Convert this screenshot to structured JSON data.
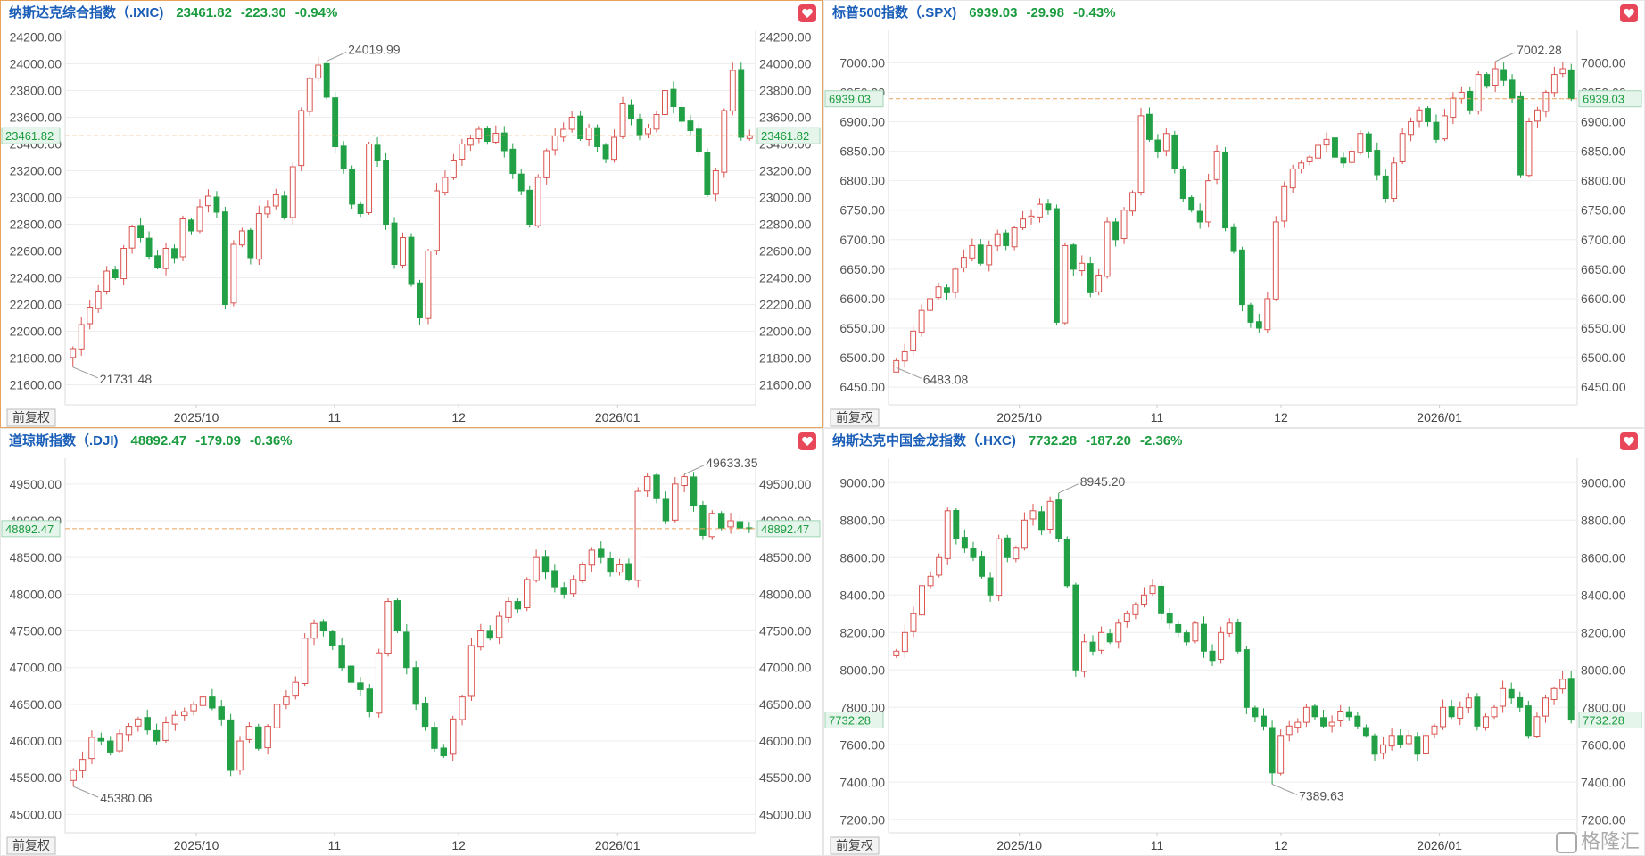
{
  "colors": {
    "up": "#d9534f",
    "down": "#22a046",
    "change": "#1a9c3e",
    "title": "#1a5eb8",
    "heart": "#e8475a",
    "active_border": "#e8a25c"
  },
  "fq_label": "前复权",
  "watermark": "格隆汇",
  "panels": [
    {
      "key": "ixic",
      "title": "纳斯达克综合指数（.IXIC)",
      "price": "23461.82",
      "change": "-223.30",
      "pct": "-0.94%",
      "current_label": "23461.82",
      "max_label": "24019.99",
      "min_label": "21731.48",
      "x_labels": [
        "2025/10",
        "11",
        "12",
        "2026/01"
      ],
      "chart_data": {
        "type": "candlestick",
        "y_ticks": [
          "24200.00",
          "24000.00",
          "23800.00",
          "23600.00",
          "23400.00",
          "23200.00",
          "23000.00",
          "22800.00",
          "22600.00",
          "22400.00",
          "22200.00",
          "22000.00",
          "21800.00",
          "21600.00"
        ],
        "ylim": [
          21450,
          24250
        ],
        "current": 23461.82,
        "max": 24019.99,
        "min": 21731.48,
        "closes": [
          21870,
          22050,
          22180,
          22300,
          22450,
          22400,
          22620,
          22780,
          22700,
          22560,
          22480,
          22620,
          22550,
          22840,
          22750,
          22930,
          23010,
          22890,
          22200,
          22650,
          22750,
          22550,
          22880,
          22930,
          23020,
          22850,
          23230,
          23650,
          23890,
          23990,
          23750,
          23380,
          23220,
          22950,
          22880,
          23400,
          23280,
          22800,
          22500,
          22700,
          22350,
          22100,
          22600,
          23050,
          23150,
          23280,
          23400,
          23440,
          23510,
          23420,
          23480,
          23350,
          23180,
          23050,
          22800,
          23150,
          23350,
          23460,
          23510,
          23600,
          23440,
          23520,
          23380,
          23290,
          23450,
          23700,
          23590,
          23470,
          23520,
          23620,
          23800,
          23680,
          23570,
          23500,
          23340,
          23020,
          23200,
          23650,
          23950,
          23450,
          23462
        ]
      }
    },
    {
      "key": "spx",
      "title": "标普500指数（.SPX)",
      "price": "6939.03",
      "change": "-29.98",
      "pct": "-0.43%",
      "current_label": "6939.03",
      "max_label": "7002.28",
      "min_label": "6483.08",
      "x_labels": [
        "2025/10",
        "11",
        "12",
        "2026/01"
      ],
      "chart_data": {
        "type": "candlestick",
        "y_ticks": [
          "7000.00",
          "6950.00",
          "6900.00",
          "6850.00",
          "6800.00",
          "6750.00",
          "6700.00",
          "6650.00",
          "6600.00",
          "6550.00",
          "6500.00",
          "6450.00"
        ],
        "ylim": [
          6420,
          7055
        ],
        "current": 6939.03,
        "max": 7002.28,
        "min": 6483.08,
        "closes": [
          6495,
          6510,
          6545,
          6580,
          6600,
          6620,
          6610,
          6650,
          6670,
          6690,
          6660,
          6690,
          6710,
          6690,
          6720,
          6735,
          6740,
          6760,
          6750,
          6560,
          6690,
          6650,
          6660,
          6610,
          6640,
          6730,
          6700,
          6750,
          6780,
          6910,
          6870,
          6850,
          6880,
          6820,
          6770,
          6750,
          6730,
          6800,
          6850,
          6720,
          6680,
          6590,
          6560,
          6550,
          6600,
          6730,
          6790,
          6820,
          6830,
          6840,
          6860,
          6870,
          6840,
          6830,
          6850,
          6880,
          6850,
          6810,
          6770,
          6830,
          6880,
          6900,
          6920,
          6900,
          6870,
          6910,
          6940,
          6950,
          6920,
          6980,
          6960,
          6990,
          6970,
          6940,
          6810,
          6900,
          6920,
          6950,
          6980,
          6990,
          6939
        ]
      }
    },
    {
      "key": "dji",
      "title": "道琼斯指数（.DJI)",
      "price": "48892.47",
      "change": "-179.09",
      "pct": "-0.36%",
      "current_label": "48892.47",
      "max_label": "49633.35",
      "min_label": "45380.06",
      "x_labels": [
        "2025/10",
        "11",
        "12",
        "2026/01"
      ],
      "chart_data": {
        "type": "candlestick",
        "y_ticks": [
          "49500.00",
          "49000.00",
          "48500.00",
          "48000.00",
          "47500.00",
          "47000.00",
          "46500.00",
          "46000.00",
          "45500.00",
          "45000.00"
        ],
        "ylim": [
          44750,
          49850
        ],
        "current": 48892.47,
        "max": 49633.35,
        "min": 45380.06,
        "closes": [
          45600,
          45750,
          46050,
          46000,
          45850,
          46100,
          46200,
          46300,
          46150,
          46000,
          46250,
          46350,
          46400,
          46500,
          46600,
          46450,
          46300,
          45600,
          46000,
          46200,
          45900,
          46200,
          46500,
          46600,
          46800,
          47400,
          47600,
          47500,
          47300,
          47000,
          46800,
          46700,
          46400,
          47200,
          47900,
          47500,
          47000,
          46500,
          46200,
          45900,
          45800,
          46300,
          46600,
          47300,
          47500,
          47400,
          47700,
          47900,
          47800,
          48200,
          48500,
          48300,
          48100,
          48000,
          48200,
          48400,
          48600,
          48500,
          48300,
          48400,
          48200,
          49400,
          49600,
          49300,
          49000,
          49500,
          49600,
          49200,
          48800,
          49100,
          48900,
          49000,
          48900,
          48892
        ]
      }
    },
    {
      "key": "hxc",
      "title": "纳斯达克中国金龙指数（.HXC)",
      "price": "7732.28",
      "change": "-187.20",
      "pct": "-2.36%",
      "current_label": "7732.28",
      "max_label": "8945.20",
      "min_label": "7389.63",
      "x_labels": [
        "2025/10",
        "11",
        "12",
        "2026/01"
      ],
      "chart_data": {
        "type": "candlestick",
        "y_ticks": [
          "9000.00",
          "8800.00",
          "8600.00",
          "8400.00",
          "8200.00",
          "8000.00",
          "7800.00",
          "7600.00",
          "7400.00",
          "7200.00"
        ],
        "ylim": [
          7130,
          9130
        ],
        "current": 7732.28,
        "max": 8945.2,
        "min": 7389.63,
        "closes": [
          8100,
          8200,
          8300,
          8450,
          8500,
          8600,
          8850,
          8700,
          8650,
          8600,
          8500,
          8400,
          8700,
          8600,
          8650,
          8800,
          8850,
          8750,
          8900,
          8700,
          8450,
          8000,
          8150,
          8100,
          8200,
          8150,
          8250,
          8300,
          8350,
          8400,
          8450,
          8300,
          8250,
          8200,
          8150,
          8250,
          8100,
          8050,
          8200,
          8250,
          8100,
          7800,
          7750,
          7700,
          7450,
          7650,
          7700,
          7720,
          7800,
          7750,
          7700,
          7720,
          7780,
          7750,
          7700,
          7650,
          7550,
          7600,
          7650,
          7600,
          7650,
          7550,
          7650,
          7700,
          7800,
          7750,
          7800,
          7850,
          7700,
          7750,
          7800,
          7900,
          7850,
          7800,
          7650,
          7750,
          7850,
          7900,
          7950,
          7732
        ]
      }
    }
  ]
}
